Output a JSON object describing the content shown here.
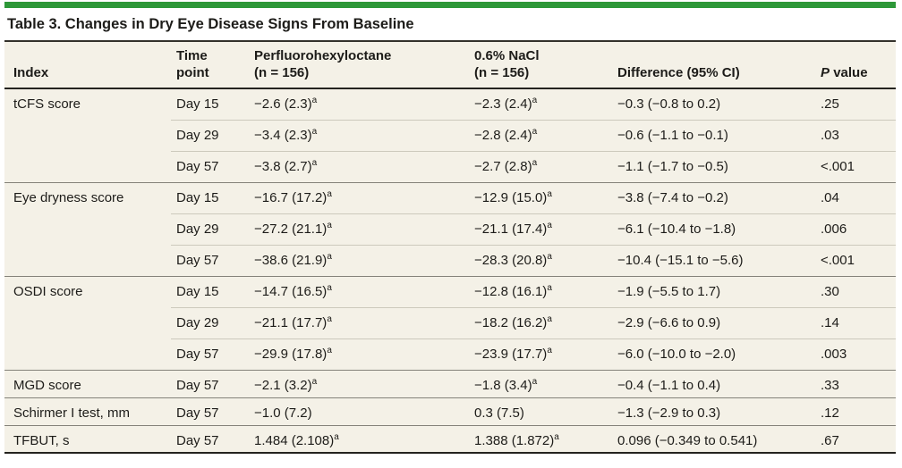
{
  "accent_color": "#2e9839",
  "table_bg_color": "#f4f1e7",
  "title": "Table 3. Changes in Dry Eye Disease Signs From Baseline",
  "table": {
    "header": {
      "index": "Index",
      "time_line1": "Time",
      "time_line2": "point",
      "pfho_line1": "Perfluorohexyloctane",
      "pfho_line2": "(n = 156)",
      "nacl_line1": "0.6% NaCl",
      "nacl_line2": "(n = 156)",
      "difference": "Difference (95% CI)",
      "p_italic": "P",
      "p_rest": "value"
    },
    "groups": [
      {
        "index": "tCFS score",
        "rows": [
          {
            "time": "Day 15",
            "pfho": "−2.6 (2.3)",
            "pfho_sup": "a",
            "nacl": "−2.3 (2.4)",
            "nacl_sup": "a",
            "diff": "−0.3 (−0.8 to 0.2)",
            "p": ".25"
          },
          {
            "time": "Day 29",
            "pfho": "−3.4 (2.3)",
            "pfho_sup": "a",
            "nacl": "−2.8 (2.4)",
            "nacl_sup": "a",
            "diff": "−0.6 (−1.1 to −0.1)",
            "p": ".03"
          },
          {
            "time": "Day 57",
            "pfho": "−3.8 (2.7)",
            "pfho_sup": "a",
            "nacl": "−2.7 (2.8)",
            "nacl_sup": "a",
            "diff": "−1.1 (−1.7 to −0.5)",
            "p": "<.001"
          }
        ]
      },
      {
        "index": "Eye dryness score",
        "rows": [
          {
            "time": "Day 15",
            "pfho": "−16.7 (17.2)",
            "pfho_sup": "a",
            "nacl": "−12.9 (15.0)",
            "nacl_sup": "a",
            "diff": "−3.8 (−7.4 to −0.2)",
            "p": ".04"
          },
          {
            "time": "Day 29",
            "pfho": "−27.2 (21.1)",
            "pfho_sup": "a",
            "nacl": "−21.1 (17.4)",
            "nacl_sup": "a",
            "diff": "−6.1 (−10.4 to −1.8)",
            "p": ".006"
          },
          {
            "time": "Day 57",
            "pfho": "−38.6 (21.9)",
            "pfho_sup": "a",
            "nacl": "−28.3 (20.8)",
            "nacl_sup": "a",
            "diff": "−10.4 (−15.1 to −5.6)",
            "p": "<.001"
          }
        ]
      },
      {
        "index": "OSDI score",
        "rows": [
          {
            "time": "Day 15",
            "pfho": "−14.7 (16.5)",
            "pfho_sup": "a",
            "nacl": "−12.8 (16.1)",
            "nacl_sup": "a",
            "diff": "−1.9 (−5.5 to 1.7)",
            "p": ".30"
          },
          {
            "time": "Day 29",
            "pfho": "−21.1 (17.7)",
            "pfho_sup": "a",
            "nacl": "−18.2 (16.2)",
            "nacl_sup": "a",
            "diff": "−2.9 (−6.6 to 0.9)",
            "p": ".14"
          },
          {
            "time": "Day 57",
            "pfho": "−29.9 (17.8)",
            "pfho_sup": "a",
            "nacl": "−23.9 (17.7)",
            "nacl_sup": "a",
            "diff": "−6.0 (−10.0 to −2.0)",
            "p": ".003"
          }
        ]
      },
      {
        "index": "MGD score",
        "rows": [
          {
            "time": "Day 57",
            "pfho": "−2.1 (3.2)",
            "pfho_sup": "a",
            "nacl": "−1.8 (3.4)",
            "nacl_sup": "a",
            "diff": "−0.4 (−1.1 to 0.4)",
            "p": ".33"
          }
        ]
      },
      {
        "index": "Schirmer I test, mm",
        "rows": [
          {
            "time": "Day 57",
            "pfho": "−1.0 (7.2)",
            "pfho_sup": "",
            "nacl": "0.3 (7.5)",
            "nacl_sup": "",
            "diff": "−1.3 (−2.9 to 0.3)",
            "p": ".12"
          }
        ]
      },
      {
        "index": "TFBUT, s",
        "rows": [
          {
            "time": "Day 57",
            "pfho": "1.484 (2.108)",
            "pfho_sup": "a",
            "nacl": "1.388 (1.872)",
            "nacl_sup": "a",
            "diff": "0.096 (−0.349 to 0.541)",
            "p": ".67"
          }
        ]
      }
    ]
  }
}
